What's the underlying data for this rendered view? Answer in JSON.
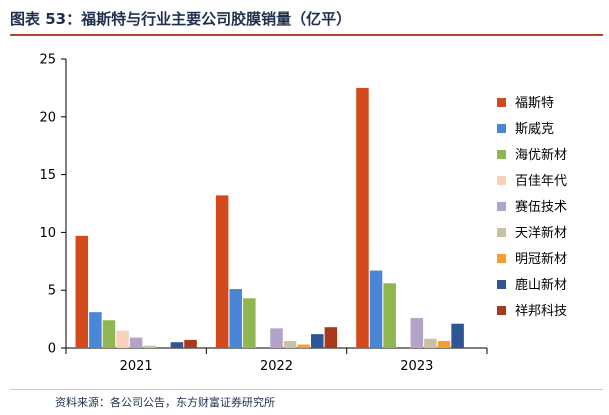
{
  "header": {
    "title": "图表 53：福斯特与行业主要公司胶膜销量（亿平）"
  },
  "footer": {
    "source": "资料来源：各公司公告，东方财富证券研究所"
  },
  "chart_data": {
    "type": "bar",
    "title": "",
    "xlabel": "",
    "ylabel": "",
    "categories": [
      "2021",
      "2022",
      "2023"
    ],
    "ylim": [
      0,
      25
    ],
    "yticks": [
      0,
      5,
      10,
      15,
      20,
      25
    ],
    "grid": false,
    "legend_position": "right",
    "series": [
      {
        "name": "福斯特",
        "color": "#d34a1c",
        "values": [
          9.7,
          13.2,
          22.5
        ]
      },
      {
        "name": "斯威克",
        "color": "#4a86d6",
        "values": [
          3.1,
          5.1,
          6.7
        ]
      },
      {
        "name": "海优新材",
        "color": "#8fb651",
        "values": [
          2.4,
          4.3,
          5.6
        ]
      },
      {
        "name": "百佳年代",
        "color": "#f7d2b8",
        "values": [
          1.5,
          null,
          null
        ]
      },
      {
        "name": "赛伍技术",
        "color": "#b3a3c9",
        "values": [
          0.9,
          1.7,
          2.6
        ]
      },
      {
        "name": "天洋新材",
        "color": "#c9c1a3",
        "values": [
          0.2,
          0.6,
          0.8
        ]
      },
      {
        "name": "明冠新材",
        "color": "#f5a02c",
        "values": [
          null,
          0.3,
          0.6
        ]
      },
      {
        "name": "鹿山新材",
        "color": "#2f5597",
        "values": [
          0.5,
          1.2,
          2.1
        ]
      },
      {
        "name": "祥邦科技",
        "color": "#a8391b",
        "values": [
          0.7,
          1.8,
          null
        ]
      }
    ]
  }
}
